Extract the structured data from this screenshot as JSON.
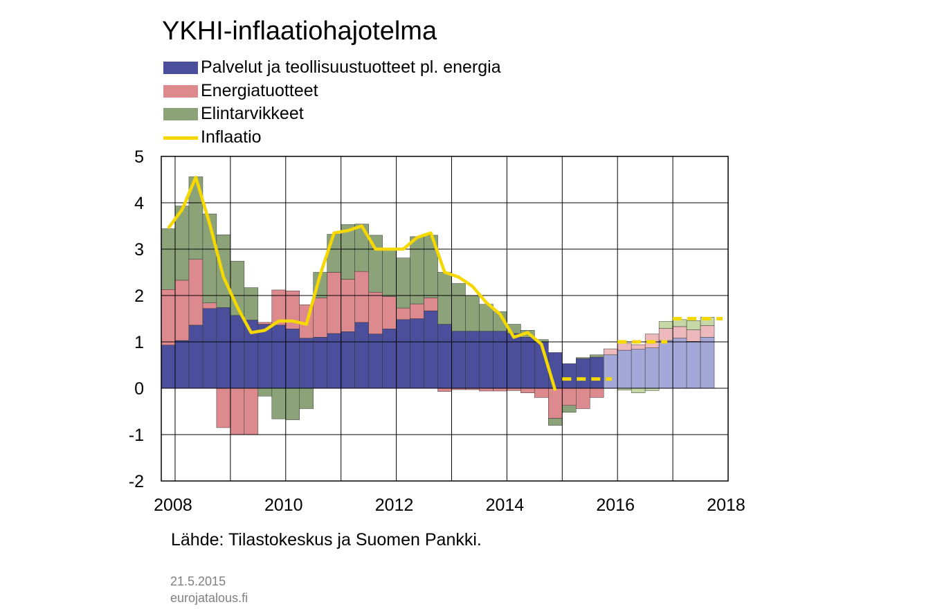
{
  "title": "YKHI-inflaatiohajotelma",
  "legend": [
    {
      "label": "Palvelut ja teollisuustuotteet pl. energia",
      "color": "#4b4f9b",
      "kind": "box"
    },
    {
      "label": "Energiatuotteet",
      "color": "#dd8a8f",
      "kind": "box"
    },
    {
      "label": "Elintarvikkeet",
      "color": "#8ca37a",
      "kind": "box"
    },
    {
      "label": "Inflaatio",
      "color": "#f5d800",
      "kind": "line"
    }
  ],
  "source": "Lähde: Tilastokeskus ja Suomen Pankki.",
  "footer": {
    "date": "21.5.2015",
    "site": "eurojatalous.fi"
  },
  "chart_data": {
    "type": "bar",
    "stacked": true,
    "frequency": "quarterly",
    "x_start": "2008Q1",
    "categories": [
      "2008Q1",
      "2008Q2",
      "2008Q3",
      "2008Q4",
      "2009Q1",
      "2009Q2",
      "2009Q3",
      "2009Q4",
      "2010Q1",
      "2010Q2",
      "2010Q3",
      "2010Q4",
      "2011Q1",
      "2011Q2",
      "2011Q3",
      "2011Q4",
      "2012Q1",
      "2012Q2",
      "2012Q3",
      "2012Q4",
      "2013Q1",
      "2013Q2",
      "2013Q3",
      "2013Q4",
      "2014Q1",
      "2014Q2",
      "2014Q3",
      "2014Q4",
      "2015Q1",
      "2015Q2",
      "2015Q3",
      "2015Q4",
      "2016Q1",
      "2016Q2",
      "2016Q3",
      "2016Q4",
      "2017Q1",
      "2017Q2",
      "2017Q3",
      "2017Q4"
    ],
    "forecast_start_index": 32,
    "series": [
      {
        "name": "Palvelut ja teollisuustuotteet pl. energia",
        "color": "#4b4f9b",
        "forecast_color": "#a4a8d8",
        "values": [
          0.93,
          1.03,
          1.36,
          1.72,
          1.74,
          1.57,
          1.47,
          1.38,
          1.36,
          1.28,
          1.08,
          1.1,
          1.18,
          1.22,
          1.42,
          1.17,
          1.28,
          1.48,
          1.5,
          1.67,
          1.38,
          1.23,
          1.23,
          1.23,
          1.23,
          1.18,
          1.1,
          1.0,
          0.77,
          0.53,
          0.64,
          0.67,
          0.72,
          0.82,
          0.84,
          0.87,
          1.03,
          1.08,
          1.01,
          1.1
        ]
      },
      {
        "name": "Energiatuotteet",
        "color": "#dd8a8f",
        "forecast_color": "#edb9bd",
        "values": [
          1.2,
          1.3,
          1.42,
          0.12,
          -0.85,
          -1.0,
          -1.0,
          0.04,
          0.76,
          0.82,
          0.72,
          0.85,
          1.32,
          1.13,
          1.1,
          0.9,
          0.7,
          0.25,
          0.32,
          0.28,
          -0.07,
          -0.03,
          -0.03,
          -0.06,
          -0.06,
          -0.05,
          -0.1,
          -0.2,
          -0.65,
          -0.37,
          -0.44,
          -0.2,
          0.13,
          0.15,
          0.1,
          0.3,
          0.26,
          0.25,
          0.25,
          0.25
        ]
      },
      {
        "name": "Elintarvikkeet",
        "color": "#8ca37a",
        "forecast_color": "#c6d8a5",
        "values": [
          1.31,
          1.6,
          1.78,
          1.92,
          1.57,
          1.17,
          0.7,
          -0.17,
          -0.66,
          -0.68,
          -0.44,
          0.55,
          0.82,
          1.18,
          1.02,
          1.23,
          1.0,
          1.08,
          1.45,
          1.35,
          1.12,
          1.03,
          0.77,
          0.58,
          0.42,
          0.2,
          0.15,
          0.05,
          -0.15,
          -0.15,
          0.02,
          0.05,
          0.0,
          -0.04,
          -0.1,
          -0.05,
          0.15,
          0.15,
          0.2,
          0.18
        ]
      },
      {
        "name": "Inflaatio",
        "type": "line",
        "color": "#f5d800",
        "values": [
          3.45,
          3.85,
          4.55,
          3.55,
          2.4,
          1.75,
          1.2,
          1.25,
          1.45,
          1.45,
          1.38,
          2.45,
          3.35,
          3.4,
          3.5,
          3.0,
          3.0,
          3.0,
          3.25,
          3.35,
          2.5,
          2.4,
          2.2,
          1.85,
          1.6,
          1.1,
          1.2,
          0.95,
          -0.05,
          null,
          null,
          null,
          null,
          null,
          null,
          null,
          null,
          null,
          null,
          null
        ]
      },
      {
        "name": "Inflaatio (ennuste)",
        "type": "line",
        "dashed": true,
        "color": "#f5d800",
        "segments": [
          {
            "x0": 2015.0,
            "x1": 2015.9,
            "y": 0.2
          },
          {
            "x0": 2016.0,
            "x1": 2016.9,
            "y": 1.0
          },
          {
            "x0": 2017.0,
            "x1": 2017.9,
            "y": 1.5
          }
        ]
      }
    ],
    "xlim": [
      2007.75,
      2018.0
    ],
    "ylim": [
      -2,
      5
    ],
    "x_ticks": [
      "2008",
      "2010",
      "2012",
      "2014",
      "2016",
      "2018"
    ],
    "y_ticks": [
      "5",
      "4",
      "3",
      "2",
      "1",
      "0",
      "-1",
      "-2"
    ],
    "grid": true,
    "legend_position": "top-left"
  }
}
